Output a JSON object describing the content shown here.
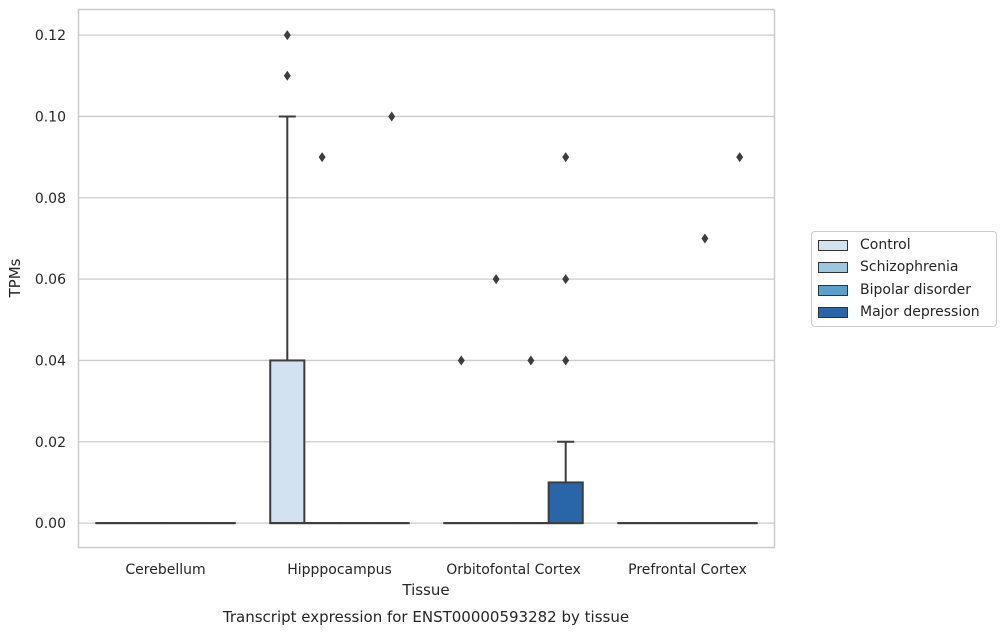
{
  "chart_data": {
    "type": "box",
    "title": "Transcript expression for ENST00000593282 by tissue",
    "xlabel": "Tissue",
    "ylabel": "TPMs",
    "ylim": [
      -0.006,
      0.1263
    ],
    "yticks": [
      0.0,
      0.02,
      0.04,
      0.06,
      0.08,
      0.1,
      0.12
    ],
    "ytick_labels": [
      "0.00",
      "0.02",
      "0.04",
      "0.06",
      "0.08",
      "0.10",
      "0.12"
    ],
    "grid": "horizontal",
    "legend_position": "right",
    "categories": [
      "Cerebellum",
      "Hipppocampus",
      "Orbitofontal Cortex",
      "Prefrontal Cortex"
    ],
    "series": [
      {
        "name": "Control",
        "color": "#d2e2f1"
      },
      {
        "name": "Schizophrenia",
        "color": "#9ac8e0"
      },
      {
        "name": "Bipolar disorder",
        "color": "#5b9fcb"
      },
      {
        "name": "Major depression",
        "color": "#2866a9"
      }
    ],
    "boxes": [
      {
        "category": "Cerebellum",
        "series": "Control",
        "q1": 0,
        "median": 0,
        "q3": 0,
        "whisker_low": 0,
        "whisker_high": 0,
        "outliers": []
      },
      {
        "category": "Cerebellum",
        "series": "Schizophrenia",
        "q1": 0,
        "median": 0,
        "q3": 0,
        "whisker_low": 0,
        "whisker_high": 0,
        "outliers": []
      },
      {
        "category": "Cerebellum",
        "series": "Bipolar disorder",
        "q1": 0,
        "median": 0,
        "q3": 0,
        "whisker_low": 0,
        "whisker_high": 0,
        "outliers": []
      },
      {
        "category": "Cerebellum",
        "series": "Major depression",
        "q1": 0,
        "median": 0,
        "q3": 0,
        "whisker_low": 0,
        "whisker_high": 0,
        "outliers": []
      },
      {
        "category": "Hipppocampus",
        "series": "Control",
        "q1": 0,
        "median": 0,
        "q3": 0.04,
        "whisker_low": 0,
        "whisker_high": 0.1,
        "outliers": [
          0.11,
          0.12
        ]
      },
      {
        "category": "Hipppocampus",
        "series": "Schizophrenia",
        "q1": 0,
        "median": 0,
        "q3": 0,
        "whisker_low": 0,
        "whisker_high": 0,
        "outliers": [
          0.09
        ]
      },
      {
        "category": "Hipppocampus",
        "series": "Bipolar disorder",
        "q1": 0,
        "median": 0,
        "q3": 0,
        "whisker_low": 0,
        "whisker_high": 0,
        "outliers": []
      },
      {
        "category": "Hipppocampus",
        "series": "Major depression",
        "q1": 0,
        "median": 0,
        "q3": 0,
        "whisker_low": 0,
        "whisker_high": 0,
        "outliers": [
          0.1
        ]
      },
      {
        "category": "Orbitofontal Cortex",
        "series": "Control",
        "q1": 0,
        "median": 0,
        "q3": 0,
        "whisker_low": 0,
        "whisker_high": 0,
        "outliers": [
          0.04
        ]
      },
      {
        "category": "Orbitofontal Cortex",
        "series": "Schizophrenia",
        "q1": 0,
        "median": 0,
        "q3": 0,
        "whisker_low": 0,
        "whisker_high": 0,
        "outliers": [
          0.06
        ]
      },
      {
        "category": "Orbitofontal Cortex",
        "series": "Bipolar disorder",
        "q1": 0,
        "median": 0,
        "q3": 0,
        "whisker_low": 0,
        "whisker_high": 0,
        "outliers": [
          0.04
        ]
      },
      {
        "category": "Orbitofontal Cortex",
        "series": "Major depression",
        "q1": 0,
        "median": 0,
        "q3": 0.01,
        "whisker_low": 0,
        "whisker_high": 0.02,
        "outliers": [
          0.04,
          0.06,
          0.09
        ]
      },
      {
        "category": "Prefrontal Cortex",
        "series": "Control",
        "q1": 0,
        "median": 0,
        "q3": 0,
        "whisker_low": 0,
        "whisker_high": 0,
        "outliers": []
      },
      {
        "category": "Prefrontal Cortex",
        "series": "Schizophrenia",
        "q1": 0,
        "median": 0,
        "q3": 0,
        "whisker_low": 0,
        "whisker_high": 0,
        "outliers": []
      },
      {
        "category": "Prefrontal Cortex",
        "series": "Bipolar disorder",
        "q1": 0,
        "median": 0,
        "q3": 0,
        "whisker_low": 0,
        "whisker_high": 0,
        "outliers": [
          0.07
        ]
      },
      {
        "category": "Prefrontal Cortex",
        "series": "Major depression",
        "q1": 0,
        "median": 0,
        "q3": 0,
        "whisker_low": 0,
        "whisker_high": 0,
        "outliers": [
          0.09
        ]
      }
    ]
  }
}
